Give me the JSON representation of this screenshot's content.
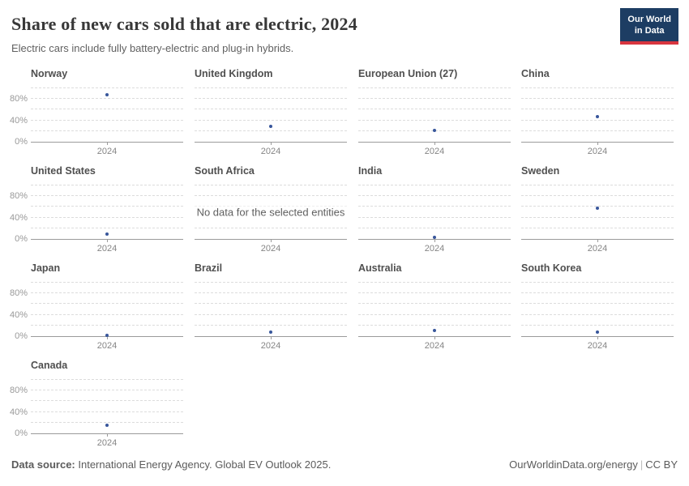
{
  "header": {
    "title": "Share of new cars sold that are electric, 2024",
    "subtitle": "Electric cars include fully battery-electric and plug-in hybrids.",
    "logo_line1": "Our World",
    "logo_line2": "in Data"
  },
  "chart_data": {
    "type": "scatter",
    "layout": "small-multiples-grid-4-columns",
    "title": "Share of new cars sold that are electric, 2024",
    "x_categories": [
      "2024"
    ],
    "x_tick_label": "2024",
    "ylabel": "",
    "ylim": [
      0,
      100
    ],
    "y_tick_labels": [
      "0%",
      "40%",
      "80%"
    ],
    "y_tick_values": [
      0,
      40,
      80
    ],
    "gridline_values": [
      20,
      40,
      60,
      80,
      100
    ],
    "grid": "dashed horizontal lines every 20%, solid axis at 0%",
    "legend_position": "none",
    "no_data_text": "No data for the selected entities",
    "facets": [
      {
        "name": "Norway",
        "year": 2024,
        "value": 88,
        "unit": "%"
      },
      {
        "name": "United Kingdom",
        "year": 2024,
        "value": 28.5,
        "unit": "%"
      },
      {
        "name": "European Union (27)",
        "year": 2024,
        "value": 21,
        "unit": "%"
      },
      {
        "name": "China",
        "year": 2024,
        "value": 47.5,
        "unit": "%"
      },
      {
        "name": "United States",
        "year": 2024,
        "value": 9.5,
        "unit": "%"
      },
      {
        "name": "South Africa",
        "year": 2024,
        "value": null,
        "no_data": true
      },
      {
        "name": "India",
        "year": 2024,
        "value": 2.5,
        "unit": "%"
      },
      {
        "name": "Sweden",
        "year": 2024,
        "value": 57.5,
        "unit": "%"
      },
      {
        "name": "Japan",
        "year": 2024,
        "value": 1.5,
        "unit": "%"
      },
      {
        "name": "Brazil",
        "year": 2024,
        "value": 7,
        "unit": "%"
      },
      {
        "name": "Australia",
        "year": 2024,
        "value": 10.5,
        "unit": "%"
      },
      {
        "name": "South Korea",
        "year": 2024,
        "value": 7.5,
        "unit": "%"
      },
      {
        "name": "Canada",
        "year": 2024,
        "value": 14.5,
        "unit": "%"
      }
    ]
  },
  "footer": {
    "source_label": "Data source:",
    "source_text": " International Energy Agency. Global EV Outlook 2025.",
    "site_link": "OurWorldinData.org/energy",
    "license": "CC BY"
  },
  "colors": {
    "point": "#38569b",
    "logo_bg": "#1d3d63",
    "logo_accent": "#d8353f",
    "gridline": "#dcdcdc",
    "axis": "#9b9b9b"
  }
}
